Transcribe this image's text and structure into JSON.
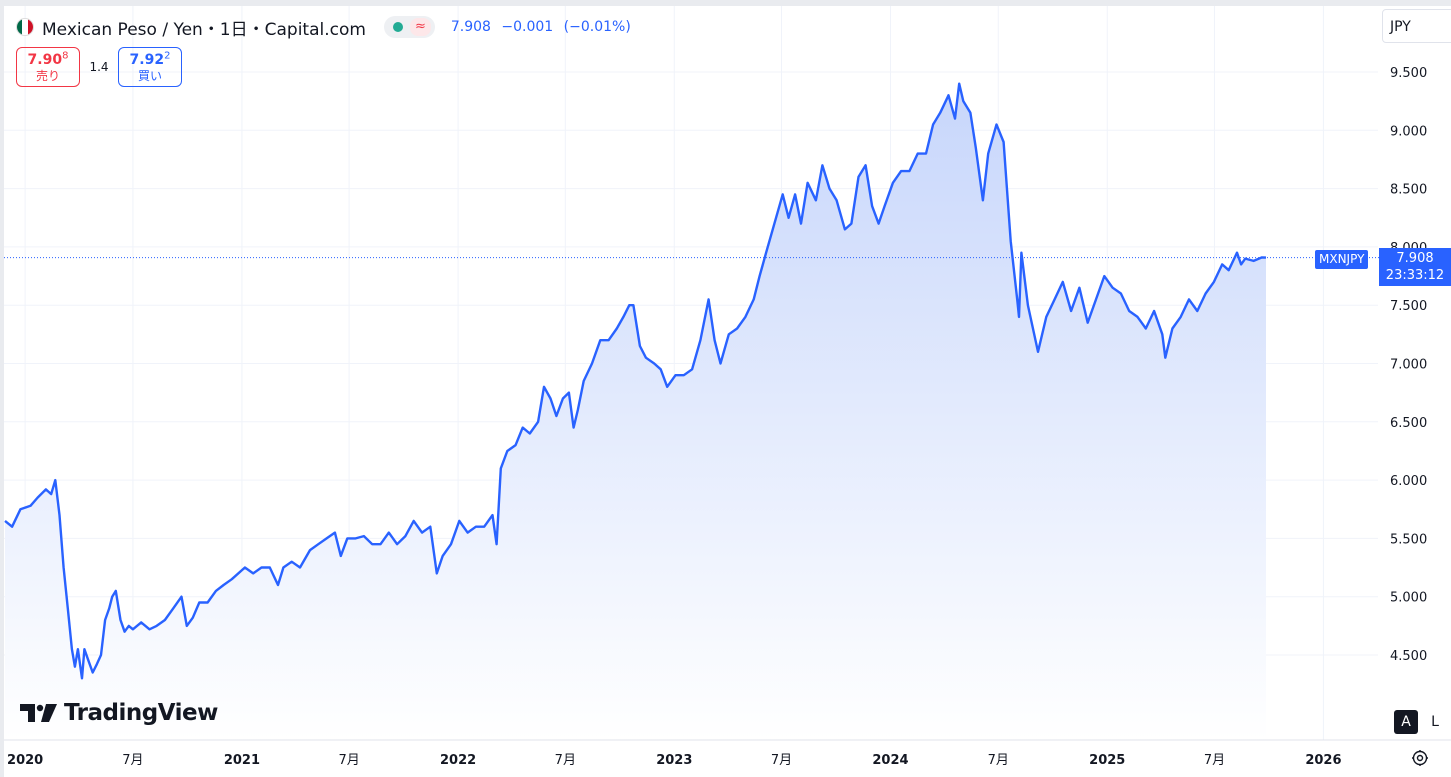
{
  "header": {
    "symbol_title": "Mexican Peso / Yen・1日・Capital.com",
    "flag_colors": [
      "#006847",
      "#ffffff",
      "#ce1126"
    ],
    "status": {
      "market_icon": "market-open-dot-icon",
      "market_color": "#22ab94",
      "delay_glyph": "≈",
      "delay_color": "#f23645"
    },
    "last": "7.908",
    "change": "−0.001",
    "change_pct": "(−0.01%)"
  },
  "quote": {
    "sell_price_main": "7.90",
    "sell_price_small": "8",
    "sell_label": "売り",
    "spread": "1.4",
    "buy_price_main": "7.92",
    "buy_price_small": "2",
    "buy_label": "買い"
  },
  "toolbar": {
    "currency": "JPY",
    "auto_label": "A",
    "log_label": "L",
    "settings_icon": "gear-icon"
  },
  "price_tag": {
    "symbol": "MXNJPY",
    "price": "7.908",
    "countdown": "23:33:12"
  },
  "logo": {
    "text": "TradingView"
  },
  "colors": {
    "line": "#2962ff",
    "fill_top": "#c7d6fb",
    "fill_bottom": "#ffffff",
    "grid": "#f0f3fa",
    "accent": "#2962ff"
  },
  "chart_data": {
    "type": "area",
    "symbol": "MXNJPY",
    "interval": "1D",
    "x_unit": "date",
    "y_axis_ticks": [
      "4.500",
      "5.000",
      "5.500",
      "6.000",
      "6.500",
      "7.000",
      "7.500",
      "8.000",
      "8.500",
      "9.000",
      "9.500"
    ],
    "time_axis_ticks": [
      {
        "date": "2020-01-01",
        "label": "2020",
        "year": true
      },
      {
        "date": "2020-07-01",
        "label": "7月",
        "year": false
      },
      {
        "date": "2021-01-01",
        "label": "2021",
        "year": true
      },
      {
        "date": "2021-07-01",
        "label": "7月",
        "year": false
      },
      {
        "date": "2022-01-01",
        "label": "2022",
        "year": true
      },
      {
        "date": "2022-07-01",
        "label": "7月",
        "year": false
      },
      {
        "date": "2023-01-01",
        "label": "2023",
        "year": true
      },
      {
        "date": "2023-07-01",
        "label": "7月",
        "year": false
      },
      {
        "date": "2024-01-01",
        "label": "2024",
        "year": true
      },
      {
        "date": "2024-07-01",
        "label": "7月",
        "year": false
      },
      {
        "date": "2025-01-01",
        "label": "2025",
        "year": true
      },
      {
        "date": "2025-07-01",
        "label": "7月",
        "year": false
      },
      {
        "date": "2026-01-01",
        "label": "2026",
        "year": true
      }
    ],
    "ylim": [
      4.1,
      9.8
    ],
    "xlim": [
      "2019-11-28",
      "2026-03-04"
    ],
    "grid": true,
    "last_value": 7.908,
    "series": [
      {
        "points": [
          [
            "2019-11-28",
            5.65
          ],
          [
            "2019-12-10",
            5.6
          ],
          [
            "2019-12-24",
            5.75
          ],
          [
            "2020-01-10",
            5.78
          ],
          [
            "2020-01-22",
            5.85
          ],
          [
            "2020-02-05",
            5.92
          ],
          [
            "2020-02-14",
            5.88
          ],
          [
            "2020-02-21",
            6.0
          ],
          [
            "2020-02-28",
            5.7
          ],
          [
            "2020-03-06",
            5.25
          ],
          [
            "2020-03-13",
            4.9
          ],
          [
            "2020-03-20",
            4.55
          ],
          [
            "2020-03-25",
            4.4
          ],
          [
            "2020-03-30",
            4.55
          ],
          [
            "2020-04-06",
            4.3
          ],
          [
            "2020-04-10",
            4.55
          ],
          [
            "2020-04-17",
            4.45
          ],
          [
            "2020-04-24",
            4.35
          ],
          [
            "2020-05-01",
            4.42
          ],
          [
            "2020-05-08",
            4.5
          ],
          [
            "2020-05-15",
            4.8
          ],
          [
            "2020-05-22",
            4.9
          ],
          [
            "2020-05-27",
            5.0
          ],
          [
            "2020-06-02",
            5.05
          ],
          [
            "2020-06-10",
            4.8
          ],
          [
            "2020-06-17",
            4.7
          ],
          [
            "2020-06-24",
            4.75
          ],
          [
            "2020-07-01",
            4.72
          ],
          [
            "2020-07-15",
            4.78
          ],
          [
            "2020-07-29",
            4.72
          ],
          [
            "2020-08-10",
            4.75
          ],
          [
            "2020-08-24",
            4.8
          ],
          [
            "2020-09-07",
            4.9
          ],
          [
            "2020-09-21",
            5.0
          ],
          [
            "2020-09-30",
            4.75
          ],
          [
            "2020-10-10",
            4.82
          ],
          [
            "2020-10-21",
            4.95
          ],
          [
            "2020-11-04",
            4.95
          ],
          [
            "2020-11-18",
            5.05
          ],
          [
            "2020-12-01",
            5.1
          ],
          [
            "2020-12-15",
            5.15
          ],
          [
            "2021-01-06",
            5.25
          ],
          [
            "2021-01-20",
            5.2
          ],
          [
            "2021-02-03",
            5.25
          ],
          [
            "2021-02-17",
            5.25
          ],
          [
            "2021-03-03",
            5.1
          ],
          [
            "2021-03-12",
            5.25
          ],
          [
            "2021-03-26",
            5.3
          ],
          [
            "2021-04-09",
            5.25
          ],
          [
            "2021-04-26",
            5.4
          ],
          [
            "2021-05-10",
            5.45
          ],
          [
            "2021-05-24",
            5.5
          ],
          [
            "2021-06-07",
            5.55
          ],
          [
            "2021-06-17",
            5.35
          ],
          [
            "2021-06-28",
            5.5
          ],
          [
            "2021-07-12",
            5.5
          ],
          [
            "2021-07-26",
            5.52
          ],
          [
            "2021-08-09",
            5.45
          ],
          [
            "2021-08-23",
            5.45
          ],
          [
            "2021-09-06",
            5.55
          ],
          [
            "2021-09-20",
            5.45
          ],
          [
            "2021-10-04",
            5.52
          ],
          [
            "2021-10-18",
            5.65
          ],
          [
            "2021-11-01",
            5.55
          ],
          [
            "2021-11-15",
            5.6
          ],
          [
            "2021-11-26",
            5.2
          ],
          [
            "2021-12-06",
            5.35
          ],
          [
            "2021-12-20",
            5.45
          ],
          [
            "2022-01-03",
            5.65
          ],
          [
            "2022-01-17",
            5.55
          ],
          [
            "2022-01-31",
            5.6
          ],
          [
            "2022-02-14",
            5.6
          ],
          [
            "2022-02-28",
            5.7
          ],
          [
            "2022-03-07",
            5.45
          ],
          [
            "2022-03-14",
            6.1
          ],
          [
            "2022-03-25",
            6.25
          ],
          [
            "2022-04-08",
            6.3
          ],
          [
            "2022-04-20",
            6.45
          ],
          [
            "2022-05-02",
            6.4
          ],
          [
            "2022-05-16",
            6.5
          ],
          [
            "2022-05-26",
            6.8
          ],
          [
            "2022-06-06",
            6.7
          ],
          [
            "2022-06-16",
            6.55
          ],
          [
            "2022-06-27",
            6.7
          ],
          [
            "2022-07-07",
            6.75
          ],
          [
            "2022-07-15",
            6.45
          ],
          [
            "2022-07-22",
            6.6
          ],
          [
            "2022-08-01",
            6.85
          ],
          [
            "2022-08-15",
            7.0
          ],
          [
            "2022-08-29",
            7.2
          ],
          [
            "2022-09-12",
            7.2
          ],
          [
            "2022-09-26",
            7.3
          ],
          [
            "2022-10-07",
            7.4
          ],
          [
            "2022-10-17",
            7.5
          ],
          [
            "2022-10-24",
            7.5
          ],
          [
            "2022-11-04",
            7.15
          ],
          [
            "2022-11-14",
            7.05
          ],
          [
            "2022-11-28",
            7.0
          ],
          [
            "2022-12-09",
            6.95
          ],
          [
            "2022-12-20",
            6.8
          ],
          [
            "2023-01-03",
            6.9
          ],
          [
            "2023-01-17",
            6.9
          ],
          [
            "2023-01-31",
            6.95
          ],
          [
            "2023-02-14",
            7.2
          ],
          [
            "2023-02-28",
            7.55
          ],
          [
            "2023-03-10",
            7.2
          ],
          [
            "2023-03-20",
            7.0
          ],
          [
            "2023-04-03",
            7.25
          ],
          [
            "2023-04-17",
            7.3
          ],
          [
            "2023-05-01",
            7.4
          ],
          [
            "2023-05-15",
            7.55
          ],
          [
            "2023-05-25",
            7.75
          ],
          [
            "2023-06-05",
            7.95
          ],
          [
            "2023-06-19",
            8.2
          ],
          [
            "2023-07-03",
            8.45
          ],
          [
            "2023-07-13",
            8.25
          ],
          [
            "2023-07-24",
            8.45
          ],
          [
            "2023-08-03",
            8.2
          ],
          [
            "2023-08-14",
            8.55
          ],
          [
            "2023-08-28",
            8.4
          ],
          [
            "2023-09-08",
            8.7
          ],
          [
            "2023-09-20",
            8.5
          ],
          [
            "2023-10-02",
            8.4
          ],
          [
            "2023-10-16",
            8.15
          ],
          [
            "2023-10-27",
            8.2
          ],
          [
            "2023-11-08",
            8.6
          ],
          [
            "2023-11-20",
            8.7
          ],
          [
            "2023-12-01",
            8.35
          ],
          [
            "2023-12-12",
            8.2
          ],
          [
            "2023-12-22",
            8.35
          ],
          [
            "2024-01-05",
            8.55
          ],
          [
            "2024-01-19",
            8.65
          ],
          [
            "2024-02-02",
            8.65
          ],
          [
            "2024-02-16",
            8.8
          ],
          [
            "2024-03-01",
            8.8
          ],
          [
            "2024-03-13",
            9.05
          ],
          [
            "2024-03-25",
            9.15
          ],
          [
            "2024-04-08",
            9.3
          ],
          [
            "2024-04-19",
            9.1
          ],
          [
            "2024-04-26",
            9.4
          ],
          [
            "2024-05-03",
            9.25
          ],
          [
            "2024-05-15",
            9.15
          ],
          [
            "2024-05-24",
            8.85
          ],
          [
            "2024-06-05",
            8.4
          ],
          [
            "2024-06-14",
            8.8
          ],
          [
            "2024-06-28",
            9.05
          ],
          [
            "2024-07-10",
            8.9
          ],
          [
            "2024-07-22",
            8.05
          ],
          [
            "2024-08-02",
            7.55
          ],
          [
            "2024-08-05",
            7.4
          ],
          [
            "2024-08-09",
            7.95
          ],
          [
            "2024-08-20",
            7.5
          ],
          [
            "2024-09-06",
            7.1
          ],
          [
            "2024-09-20",
            7.4
          ],
          [
            "2024-10-04",
            7.55
          ],
          [
            "2024-10-18",
            7.7
          ],
          [
            "2024-11-01",
            7.45
          ],
          [
            "2024-11-15",
            7.65
          ],
          [
            "2024-11-29",
            7.35
          ],
          [
            "2024-12-13",
            7.55
          ],
          [
            "2024-12-27",
            7.75
          ],
          [
            "2025-01-10",
            7.65
          ],
          [
            "2025-01-24",
            7.6
          ],
          [
            "2025-02-07",
            7.45
          ],
          [
            "2025-02-21",
            7.4
          ],
          [
            "2025-03-07",
            7.3
          ],
          [
            "2025-03-21",
            7.45
          ],
          [
            "2025-04-04",
            7.25
          ],
          [
            "2025-04-09",
            7.05
          ],
          [
            "2025-04-21",
            7.3
          ],
          [
            "2025-05-05",
            7.4
          ],
          [
            "2025-05-19",
            7.55
          ],
          [
            "2025-06-02",
            7.45
          ],
          [
            "2025-06-16",
            7.6
          ],
          [
            "2025-06-30",
            7.7
          ],
          [
            "2025-07-14",
            7.85
          ],
          [
            "2025-07-25",
            7.8
          ],
          [
            "2025-08-08",
            7.95
          ],
          [
            "2025-08-15",
            7.85
          ],
          [
            "2025-08-22",
            7.9
          ],
          [
            "2025-09-05",
            7.88
          ],
          [
            "2025-09-19",
            7.91
          ],
          [
            "2025-09-26",
            7.908
          ]
        ]
      }
    ]
  }
}
